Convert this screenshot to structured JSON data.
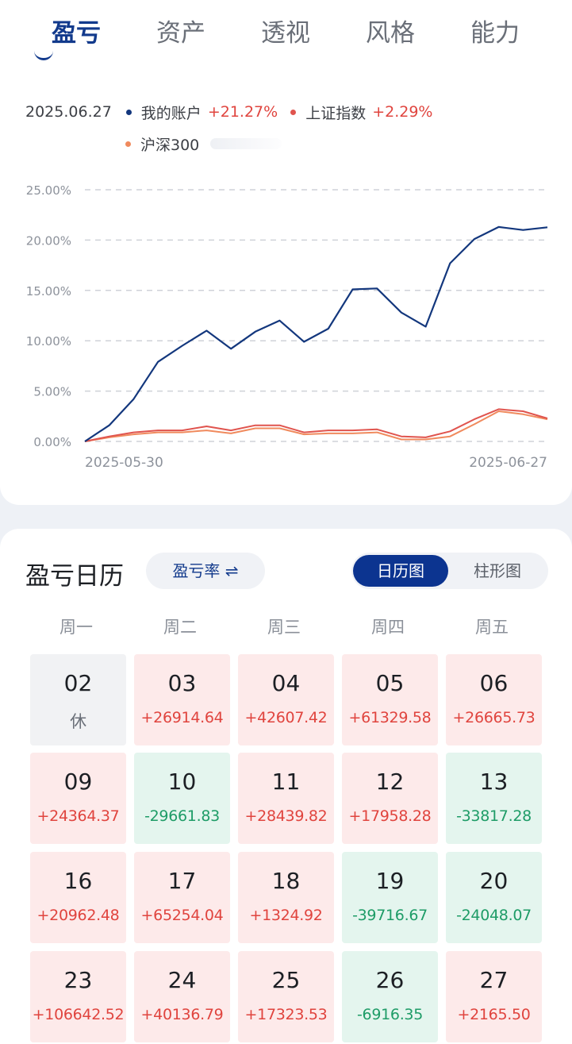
{
  "tabs": [
    {
      "label": "盈亏"
    },
    {
      "label": "资产"
    },
    {
      "label": "透视"
    },
    {
      "label": "风格"
    },
    {
      "label": "能力"
    }
  ],
  "legend": {
    "date": "2025.06.27",
    "items": [
      {
        "name": "我的账户",
        "value": "+21.27%",
        "color": "#13377d"
      },
      {
        "name": "上证指数",
        "value": "+2.29%",
        "color": "#e0544e"
      },
      {
        "name": "沪深300",
        "value": "",
        "color": "#f08a5d"
      }
    ]
  },
  "chart_data": {
    "type": "line",
    "x_start_label": "2025-05-30",
    "x_end_label": "2025-06-27",
    "ylim": [
      0,
      25
    ],
    "y_ticks": [
      "0.00%",
      "5.00%",
      "10.00%",
      "15.00%",
      "20.00%",
      "25.00%"
    ],
    "grid": true,
    "series": [
      {
        "name": "我的账户",
        "color": "#13377d",
        "values": [
          0,
          1.6,
          4.2,
          7.9,
          9.5,
          11.0,
          9.2,
          10.9,
          12.0,
          9.9,
          11.2,
          15.1,
          15.2,
          12.8,
          11.4,
          17.7,
          20.1,
          21.3,
          21.0,
          21.27
        ]
      },
      {
        "name": "上证指数",
        "color": "#e0544e",
        "values": [
          0,
          0.5,
          0.9,
          1.1,
          1.1,
          1.5,
          1.1,
          1.6,
          1.6,
          0.9,
          1.1,
          1.1,
          1.2,
          0.5,
          0.4,
          1.0,
          2.2,
          3.2,
          3.0,
          2.29
        ]
      },
      {
        "name": "沪深300",
        "color": "#f08a5d",
        "values": [
          0,
          0.4,
          0.7,
          0.9,
          0.9,
          1.1,
          0.8,
          1.3,
          1.3,
          0.7,
          0.8,
          0.8,
          0.9,
          0.2,
          0.2,
          0.5,
          1.7,
          3.0,
          2.7,
          2.2
        ]
      }
    ]
  },
  "calendar": {
    "title": "盈亏日历",
    "rate_button": "盈亏率 ⇌",
    "view_calendar": "日历图",
    "view_bar": "柱形图",
    "weekdays": [
      "周一",
      "周二",
      "周三",
      "周四",
      "周五"
    ],
    "cells": [
      {
        "day": "02",
        "value": "休",
        "status": "rest"
      },
      {
        "day": "03",
        "value": "+26914.64",
        "status": "up"
      },
      {
        "day": "04",
        "value": "+42607.42",
        "status": "up"
      },
      {
        "day": "05",
        "value": "+61329.58",
        "status": "up"
      },
      {
        "day": "06",
        "value": "+26665.73",
        "status": "up"
      },
      {
        "day": "09",
        "value": "+24364.37",
        "status": "up"
      },
      {
        "day": "10",
        "value": "-29661.83",
        "status": "down"
      },
      {
        "day": "11",
        "value": "+28439.82",
        "status": "up"
      },
      {
        "day": "12",
        "value": "+17958.28",
        "status": "up"
      },
      {
        "day": "13",
        "value": "-33817.28",
        "status": "down"
      },
      {
        "day": "16",
        "value": "+20962.48",
        "status": "up"
      },
      {
        "day": "17",
        "value": "+65254.04",
        "status": "up"
      },
      {
        "day": "18",
        "value": "+1324.92",
        "status": "up"
      },
      {
        "day": "19",
        "value": "-39716.67",
        "status": "down"
      },
      {
        "day": "20",
        "value": "-24048.07",
        "status": "down"
      },
      {
        "day": "23",
        "value": "+106642.52",
        "status": "up"
      },
      {
        "day": "24",
        "value": "+40136.79",
        "status": "up"
      },
      {
        "day": "25",
        "value": "+17323.53",
        "status": "up"
      },
      {
        "day": "26",
        "value": "-6916.35",
        "status": "down"
      },
      {
        "day": "27",
        "value": "+2165.50",
        "status": "up"
      }
    ]
  }
}
